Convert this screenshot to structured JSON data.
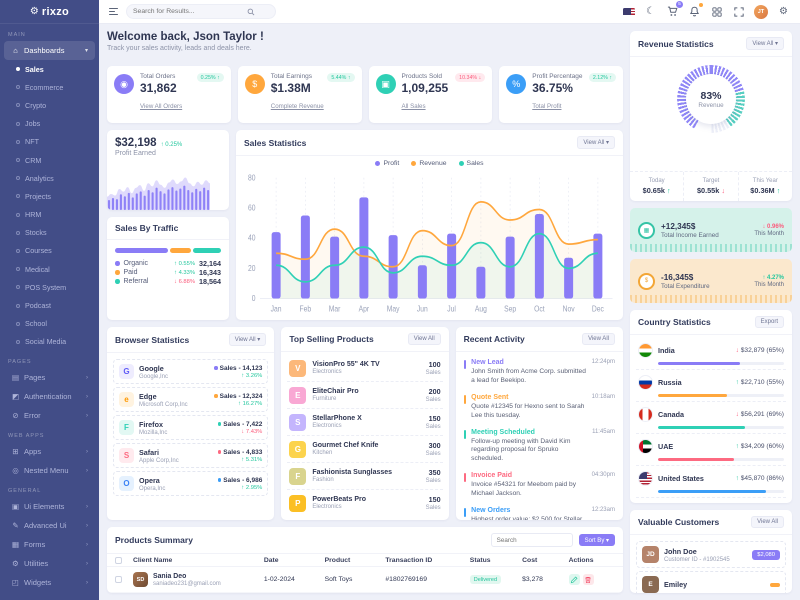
{
  "brand": {
    "logo_gear": "⚙",
    "name": "rixzo"
  },
  "header": {
    "search_placeholder": "Search for Results...",
    "cart_badge": "5",
    "avatar_initials": "JT",
    "icons": [
      "us-flag",
      "moon",
      "cart",
      "bell",
      "grid",
      "fullscreen",
      "avatar",
      "gear"
    ]
  },
  "sidebar": {
    "sections": [
      {
        "heading": "MAIN",
        "items": [
          {
            "glyph": "⌂",
            "label": "Dashboards",
            "caret": "▾",
            "cls": "current",
            "children": [
              {
                "label": "Sales",
                "cls": "active"
              },
              {
                "label": "Ecommerce"
              },
              {
                "label": "Crypto"
              },
              {
                "label": "Jobs"
              },
              {
                "label": "NFT"
              },
              {
                "label": "CRM"
              },
              {
                "label": "Analytics"
              },
              {
                "label": "Projects"
              },
              {
                "label": "HRM"
              },
              {
                "label": "Stocks"
              },
              {
                "label": "Courses"
              },
              {
                "label": "Medical"
              },
              {
                "label": "POS System"
              },
              {
                "label": "Podcast"
              },
              {
                "label": "School"
              },
              {
                "label": "Social Media"
              }
            ]
          }
        ]
      },
      {
        "heading": "PAGES",
        "items": [
          {
            "glyph": "▤",
            "label": "Pages",
            "caret": "›"
          },
          {
            "glyph": "◩",
            "label": "Authentication",
            "caret": "›"
          },
          {
            "glyph": "⊘",
            "label": "Error",
            "caret": "›"
          }
        ]
      },
      {
        "heading": "WEB APPS",
        "items": [
          {
            "glyph": "⊞",
            "label": "Apps",
            "caret": "›"
          },
          {
            "glyph": "◎",
            "label": "Nested Menu",
            "caret": "›"
          }
        ]
      },
      {
        "heading": "GENERAL",
        "items": [
          {
            "glyph": "▣",
            "label": "Ui Elements",
            "caret": "›"
          },
          {
            "glyph": "✎",
            "label": "Advanced Ui",
            "caret": "›"
          },
          {
            "glyph": "▦",
            "label": "Forms",
            "caret": "›"
          },
          {
            "glyph": "⚙",
            "label": "Utilities",
            "caret": "›"
          },
          {
            "glyph": "◰",
            "label": "Widgets",
            "caret": "›"
          }
        ]
      }
    ]
  },
  "welcome": {
    "title": "Welcome back, Json Taylor !",
    "subtitle": "Track your sales activity, leads and deals here."
  },
  "stat_cards": [
    {
      "label": "Total Orders",
      "value": "31,862",
      "badge": "0.25% ↑",
      "badge_type": "up",
      "link": "View All Orders",
      "icon_bg": "#8a7cf6",
      "glyph": "◉"
    },
    {
      "label": "Total Earnings",
      "value": "$1.38M",
      "badge": "5.44% ↑",
      "badge_type": "up",
      "link": "Complete Revenue",
      "icon_bg": "#ffa73d",
      "glyph": "$"
    },
    {
      "label": "Products Sold",
      "value": "1,09,255",
      "badge": "10.34% ↓",
      "badge_type": "down",
      "link": "All Sales",
      "icon_bg": "#2fd0b5",
      "glyph": "▣"
    },
    {
      "label": "Profit Percentage",
      "value": "36.75%",
      "badge": "2.12% ↑",
      "badge_type": "up",
      "link": "Total Profit",
      "icon_bg": "#3b9ef7",
      "glyph": "%"
    }
  ],
  "profit_card": {
    "value": "$32,198",
    "delta": "↑ 0.25%",
    "label": "Profit Earned",
    "spark_values": [
      35,
      42,
      38,
      55,
      48,
      60,
      44,
      58,
      65,
      50,
      70,
      62,
      78,
      66,
      58,
      72,
      80,
      68,
      75,
      85,
      70,
      62,
      74,
      66,
      78,
      70
    ]
  },
  "sales_by_traffic": {
    "title": "Sales By Traffic",
    "segments": [
      {
        "color": "#8a7cf6",
        "pct": 52
      },
      {
        "color": "#ffa73d",
        "pct": 21
      },
      {
        "color": "#2fd0b5",
        "pct": 27
      }
    ],
    "rows": [
      {
        "label": "Organic",
        "dot": "#8a7cf6",
        "change": "↑ 0.55%",
        "dir": "up",
        "value": "32,164"
      },
      {
        "label": "Paid",
        "dot": "#ffa73d",
        "change": "↑ 4.33%",
        "dir": "up",
        "value": "16,343"
      },
      {
        "label": "Referral",
        "dot": "#2fd0b5",
        "change": "↓ 6.88%",
        "dir": "down",
        "value": "18,564"
      }
    ]
  },
  "chart_data": {
    "type": "bar",
    "title": "Sales Statistics",
    "action": "View All ▾",
    "categories": [
      "Jan",
      "Feb",
      "Mar",
      "Apr",
      "May",
      "Jun",
      "Jul",
      "Aug",
      "Sep",
      "Oct",
      "Nov",
      "Dec"
    ],
    "series": [
      {
        "name": "Profit",
        "type": "bar",
        "color": "#8a7cf6",
        "values": [
          44,
          55,
          41,
          67,
          42,
          22,
          43,
          21,
          41,
          56,
          27,
          43
        ]
      },
      {
        "name": "Revenue",
        "type": "line",
        "color": "#ffa73d",
        "values": [
          30,
          26,
          46,
          28,
          21,
          45,
          35,
          64,
          52,
          59,
          36,
          39
        ]
      },
      {
        "name": "Sales",
        "type": "line",
        "color": "#2fd0b5",
        "values": [
          22,
          11,
          22,
          34,
          17,
          28,
          22,
          37,
          21,
          43,
          20,
          30
        ]
      }
    ],
    "ylim": [
      0,
      80
    ],
    "yticks": [
      0,
      20,
      40,
      60,
      80
    ],
    "legend_position": "top",
    "grid": "dotted-vertical"
  },
  "revenue_statistics": {
    "title": "Revenue Statistics",
    "action": "View All ▾",
    "gauge_value": "83%",
    "gauge_label": "Revenue",
    "stats": [
      {
        "label": "Today",
        "value": "$0.65k",
        "arrow": "↑",
        "dir": "arr-up"
      },
      {
        "label": "Target",
        "value": "$0.55k",
        "arrow": "↓",
        "dir": "arr-down"
      },
      {
        "label": "This Year",
        "value": "$0.36M",
        "arrow": "↑",
        "dir": "arr-up"
      }
    ]
  },
  "income_card": {
    "value": "+12,345$",
    "label": "Total Income Earned",
    "change": "↓ 0.96%",
    "change_color": "#fb5d7d",
    "period": "This Month",
    "icon_glyph": "▦"
  },
  "expenditure_card": {
    "value": "-16,345$",
    "label": "Total Expenditure",
    "change": "↑ 4.27%",
    "change_color": "#24c79e",
    "period": "This Month",
    "icon_glyph": "$"
  },
  "browser_statistics": {
    "title": "Browser Statistics",
    "action": "View All ▾",
    "items": [
      {
        "name": "Google",
        "company": "Google,Inc",
        "letter": "G",
        "icon_fg": "#5f5af6",
        "icon_bg": "#eeecfe",
        "dot": "#8a7cf6",
        "sales": "Sales - 14,123",
        "change": "↑ 3.26%",
        "dir": "up"
      },
      {
        "name": "Edge",
        "company": "Microsoft Corp,Inc",
        "letter": "e",
        "icon_fg": "#ff9800",
        "icon_bg": "#fff3e0",
        "dot": "#ffa73d",
        "sales": "Sales - 12,324",
        "change": "↑ 16.27%",
        "dir": "up"
      },
      {
        "name": "Firefox",
        "company": "Mozilla,Inc",
        "letter": "F",
        "icon_fg": "#2fd0b5",
        "icon_bg": "#e2f8f3",
        "dot": "#2fd0b5",
        "sales": "Sales - 7,422",
        "change": "↓ 7.43%",
        "dir": "down"
      },
      {
        "name": "Safari",
        "company": "Apple Corp,Inc",
        "letter": "S",
        "icon_fg": "#fd6a81",
        "icon_bg": "#ffeaee",
        "dot": "#fd6a81",
        "sales": "Sales - 4,833",
        "change": "↑ 5.31%",
        "dir": "up"
      },
      {
        "name": "Opera",
        "company": "Opera,Inc",
        "letter": "O",
        "icon_fg": "#3b82f6",
        "icon_bg": "#e5f1fe",
        "dot": "#3b9ef7",
        "sales": "Sales - 6,986",
        "change": "↑ 2.95%",
        "dir": "up"
      }
    ]
  },
  "top_selling_products": {
    "title": "Top Selling Products",
    "action": "View All",
    "items": [
      {
        "name": "VisionPro 55\" 4K TV",
        "category": "Electronics",
        "value": "100",
        "unit": "Sales",
        "letter": "V",
        "img_bg": "#fcb87a"
      },
      {
        "name": "EliteChair Pro",
        "category": "Furniture",
        "value": "200",
        "unit": "Sales",
        "letter": "E",
        "img_bg": "#f9a8d4"
      },
      {
        "name": "StellarPhone X",
        "category": "Electronics",
        "value": "150",
        "unit": "Sales",
        "letter": "S",
        "img_bg": "#c4b5fd"
      },
      {
        "name": "Gourmet Chef Knife",
        "category": "Kitchen",
        "value": "300",
        "unit": "Sales",
        "letter": "G",
        "img_bg": "#fcd34d"
      },
      {
        "name": "Fashionista Sunglasses",
        "category": "Fashion",
        "value": "350",
        "unit": "Sales",
        "letter": "F",
        "img_bg": "#d9d48e"
      },
      {
        "name": "PowerBeats Pro",
        "category": "Electronics",
        "value": "150",
        "unit": "Sales",
        "letter": "P",
        "img_bg": "#fbbf24"
      }
    ]
  },
  "recent_activity": {
    "title": "Recent Activity",
    "action": "View All",
    "items": [
      {
        "title": "New Lead",
        "time": "12:24pm",
        "color": "#8a7cf6",
        "text": "John Smith from Acme Corp. submitted a lead for Beekipo."
      },
      {
        "title": "Quote Sent",
        "time": "10:18am",
        "color": "#ffa73d",
        "text": "Quote #12345 for Hexno sent to Sarah Lee this tuesday."
      },
      {
        "title": "Meeting Scheduled",
        "time": "11:45am",
        "color": "#2fd0b5",
        "text": "Follow-up meeting with David Kim regarding proposal for Spruko scheduled."
      },
      {
        "title": "Invoice Paid",
        "time": "04:30pm",
        "color": "#fd6a81",
        "text": "Invoice #54321 for Meebom paid by Michael Jackson."
      },
      {
        "title": "New Orders",
        "time": "12:23am",
        "color": "#3b9ef7",
        "text": "Highest order value: $2,500 for Stellar X"
      }
    ]
  },
  "country_statistics": {
    "title": "Country Statistics",
    "action": "Export",
    "items": [
      {
        "name": "India",
        "flag_class": "flag-india",
        "arrow": "↓",
        "arrow_cls": "arr-down",
        "value": "$32,879 (65%)",
        "pct": 65,
        "color": "#8a7cf6"
      },
      {
        "name": "Russia",
        "flag_class": "flag-russia",
        "arrow": "↑",
        "arrow_cls": "arr-up",
        "value": "$22,710 (55%)",
        "pct": 55,
        "color": "#ffa73d"
      },
      {
        "name": "Canada",
        "flag_class": "flag-canada",
        "arrow": "↓",
        "arrow_cls": "arr-down",
        "value": "$56,291 (69%)",
        "pct": 69,
        "color": "#2fd0b5"
      },
      {
        "name": "UAE",
        "flag_class": "flag-uae",
        "arrow": "↑",
        "arrow_cls": "arr-up",
        "value": "$34,209 (60%)",
        "pct": 60,
        "color": "#fd6a81"
      },
      {
        "name": "United States",
        "flag_class": "flag-us",
        "arrow": "↑",
        "arrow_cls": "arr-up",
        "value": "$45,870 (86%)",
        "pct": 86,
        "color": "#3b9ef7"
      },
      {
        "name": "Germany",
        "flag_class": "flag-germany",
        "arrow": "↑",
        "arrow_cls": "arr-up",
        "value": "$67,357 (73%)",
        "pct": 73,
        "color": "#fdc530"
      }
    ]
  },
  "products_summary": {
    "title": "Products Summary",
    "search_placeholder": "Search",
    "sort_label": "Sort By ▾",
    "columns": [
      "Client Name",
      "Date",
      "Product",
      "Transaction ID",
      "Status",
      "Cost",
      "Actions"
    ],
    "rows": [
      {
        "name": "Sania Deo",
        "email": "saniadeo231@gmail.com",
        "initials": "SD",
        "date": "1-02-2024",
        "product": "Soft Toys",
        "txn": "#1802769169",
        "status": "Delivered",
        "cost": "$3,278"
      }
    ]
  },
  "valuable_customers": {
    "title": "Valuable Customers",
    "action": "View All",
    "items": [
      {
        "name": "John Doe",
        "id": "Customer ID - #1902545",
        "badge": "$2,080",
        "badge_bg": "#8a7cf6",
        "initials": "JD",
        "avatar_bg": "#b5836a"
      },
      {
        "name": "Emiley",
        "id": "",
        "badge": "",
        "badge_bg": "#ffa73d",
        "initials": "E",
        "avatar_bg": "#8a6a52"
      }
    ]
  }
}
